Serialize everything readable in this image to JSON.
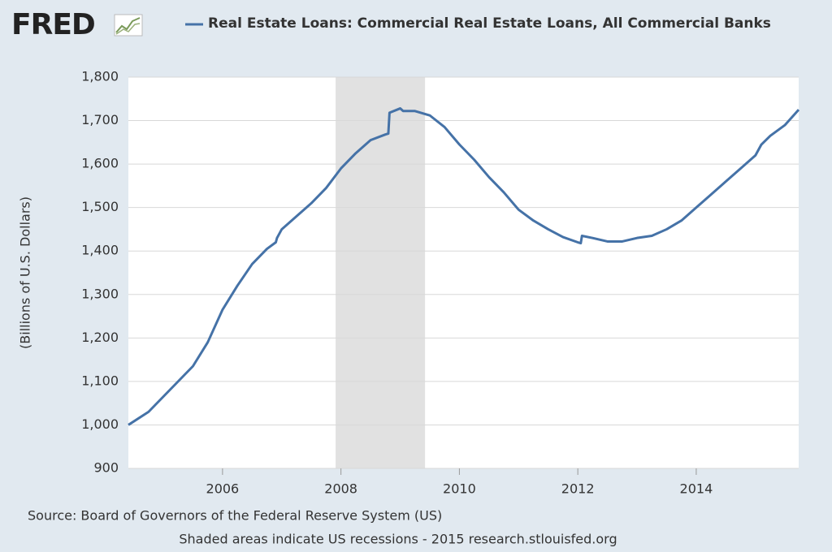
{
  "logo": "FRED",
  "chart_data": {
    "type": "line",
    "y_label": "(Billions of U.S. Dollars)",
    "source": "Source: Board of Governors of the Federal Reserve System (US)",
    "note": "Shaded areas indicate US recessions - 2015 research.stlouisfed.org",
    "x": [
      2004.41,
      2004.75,
      2005.0,
      2005.25,
      2005.5,
      2005.75,
      2006.0,
      2006.25,
      2006.5,
      2006.75,
      2006.9,
      2006.92,
      2007.0,
      2007.25,
      2007.5,
      2007.75,
      2008.0,
      2008.25,
      2008.5,
      2008.75,
      2008.8,
      2008.82,
      2009.0,
      2009.05,
      2009.25,
      2009.5,
      2009.75,
      2010.0,
      2010.25,
      2010.5,
      2010.75,
      2011.0,
      2011.25,
      2011.5,
      2011.75,
      2012.0,
      2012.05,
      2012.07,
      2012.25,
      2012.5,
      2012.75,
      2013.0,
      2013.25,
      2013.5,
      2013.75,
      2014.0,
      2014.25,
      2014.5,
      2014.75,
      2015.0,
      2015.1,
      2015.25,
      2015.5,
      2015.73
    ],
    "series": [
      {
        "name": "Real Estate Loans: Commercial Real Estate Loans, All Commercial Banks",
        "color": "#4572a7",
        "values": [
          1000,
          1030,
          1065,
          1100,
          1135,
          1190,
          1265,
          1320,
          1370,
          1405,
          1420,
          1430,
          1450,
          1480,
          1510,
          1545,
          1590,
          1625,
          1655,
          1668,
          1670,
          1718,
          1728,
          1722,
          1722,
          1712,
          1685,
          1645,
          1610,
          1570,
          1535,
          1495,
          1470,
          1450,
          1432,
          1420,
          1418,
          1435,
          1430,
          1422,
          1422,
          1430,
          1435,
          1450,
          1470,
          1500,
          1530,
          1560,
          1590,
          1620,
          1645,
          1665,
          1690,
          1725
        ]
      }
    ],
    "recessions": [
      [
        2007.91,
        2009.42
      ]
    ],
    "recession_color": "#e1e1e1",
    "xlim": [
      2004.41,
      2015.73
    ],
    "xticks": [
      2006,
      2008,
      2010,
      2012,
      2014
    ],
    "ylim": [
      900,
      1800
    ],
    "yticks": [
      {
        "value": 900,
        "label": "900"
      },
      {
        "value": 1000,
        "label": "1,000"
      },
      {
        "value": 1100,
        "label": "1,100"
      },
      {
        "value": 1200,
        "label": "1,200"
      },
      {
        "value": 1300,
        "label": "1,300"
      },
      {
        "value": 1400,
        "label": "1,400"
      },
      {
        "value": 1500,
        "label": "1,500"
      },
      {
        "value": 1600,
        "label": "1,600"
      },
      {
        "value": 1700,
        "label": "1,700"
      },
      {
        "value": 1800,
        "label": "1,800"
      }
    ],
    "grid": true
  }
}
